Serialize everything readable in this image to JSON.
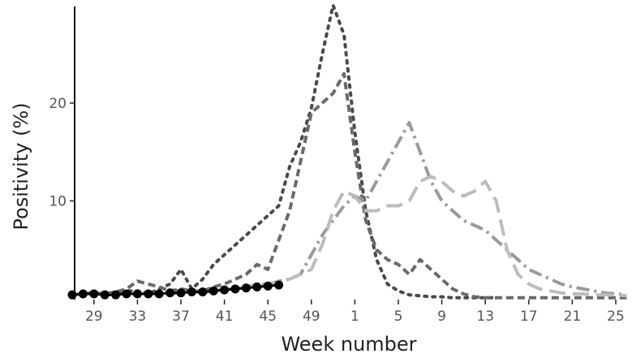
{
  "chart_data": {
    "type": "line",
    "xlabel": "Week number",
    "ylabel": "Positivity (%)",
    "x_ticks": [
      "29",
      "33",
      "37",
      "41",
      "45",
      "49",
      "1",
      "5",
      "9",
      "13",
      "17",
      "21",
      "25"
    ],
    "y_ticks": [
      "10",
      "20"
    ],
    "ylim": [
      0,
      30
    ],
    "x_range": [
      "27",
      "26"
    ],
    "grid": false,
    "legend": "none",
    "series": [
      {
        "style": "dotted",
        "color": "#4a4a4a",
        "x": [
          "27",
          "28",
          "29",
          "30",
          "31",
          "32",
          "33",
          "34",
          "35",
          "36",
          "37",
          "38",
          "39",
          "40",
          "41",
          "42",
          "43",
          "44",
          "45",
          "46",
          "47",
          "48",
          "49",
          "50",
          "51",
          "52",
          "1",
          "2",
          "3",
          "4",
          "5",
          "6",
          "7",
          "8",
          "9",
          "10",
          "11",
          "12",
          "13",
          "14"
        ],
        "values": [
          0.5,
          0.5,
          0.6,
          0.5,
          0.6,
          0.8,
          0.8,
          0.5,
          1.0,
          1.5,
          3.0,
          1.0,
          2.0,
          3.5,
          4.5,
          5.5,
          6.5,
          7.5,
          8.5,
          9.5,
          13.5,
          16.0,
          19.5,
          25.0,
          30.0,
          27.0,
          17.0,
          9.0,
          4.0,
          1.5,
          0.8,
          0.4,
          0.3,
          0.2,
          0.2,
          0.1,
          0.1,
          0.1,
          0.1,
          0.1
        ]
      },
      {
        "style": "dashed",
        "color": "#6a6a6a",
        "x": [
          "27",
          "28",
          "29",
          "30",
          "31",
          "32",
          "33",
          "34",
          "35",
          "36",
          "37",
          "38",
          "39",
          "40",
          "41",
          "42",
          "43",
          "44",
          "45",
          "46",
          "47",
          "48",
          "49",
          "50",
          "51",
          "52",
          "1",
          "2",
          "3",
          "4",
          "5",
          "6",
          "7",
          "8",
          "9",
          "10",
          "11",
          "12",
          "13",
          "14",
          "15",
          "16",
          "17",
          "18",
          "19",
          "20",
          "21",
          "22",
          "23",
          "24",
          "25",
          "26"
        ],
        "values": [
          0.4,
          0.5,
          0.6,
          0.5,
          0.7,
          1.0,
          1.8,
          1.5,
          1.2,
          0.8,
          1.0,
          0.8,
          0.8,
          1.2,
          1.5,
          2.0,
          2.5,
          3.5,
          3.0,
          6.0,
          9.0,
          14.0,
          19.0,
          20.0,
          21.0,
          23.0,
          15.0,
          8.0,
          5.0,
          4.0,
          3.5,
          2.5,
          4.0,
          3.0,
          2.0,
          1.0,
          0.5,
          0.2,
          0.1,
          0.1,
          0.1,
          0.1,
          0.1,
          0.1,
          0.1,
          0.1,
          0.1,
          0.1,
          0.1,
          0.1,
          0.1,
          0.1
        ]
      },
      {
        "style": "dash-dot",
        "color": "#9a9a9a",
        "x": [
          "36",
          "37",
          "38",
          "39",
          "40",
          "41",
          "42",
          "43",
          "44",
          "45",
          "46",
          "47",
          "48",
          "49",
          "50",
          "51",
          "52",
          "1",
          "2",
          "3",
          "4",
          "5",
          "6",
          "7",
          "8",
          "9",
          "10",
          "11",
          "12",
          "13",
          "14",
          "15",
          "16",
          "17",
          "18",
          "19",
          "20",
          "21",
          "22",
          "23",
          "24",
          "25",
          "26"
        ],
        "values": [
          0.5,
          0.6,
          0.8,
          0.6,
          0.8,
          1.0,
          1.0,
          1.2,
          1.5,
          1.5,
          1.8,
          2.0,
          2.5,
          4.5,
          6.5,
          8.0,
          9.5,
          10.5,
          10.0,
          12.0,
          14.0,
          16.0,
          18.0,
          15.0,
          12.0,
          10.0,
          9.0,
          8.0,
          7.5,
          7.0,
          6.0,
          5.0,
          4.0,
          3.0,
          2.5,
          2.0,
          1.5,
          1.2,
          1.0,
          0.8,
          0.6,
          0.5,
          0.4
        ]
      },
      {
        "style": "long-dash",
        "color": "#bcbcbc",
        "x": [
          "36",
          "37",
          "38",
          "39",
          "40",
          "41",
          "42",
          "43",
          "44",
          "45",
          "46",
          "47",
          "48",
          "49",
          "50",
          "51",
          "52",
          "1",
          "2",
          "3",
          "4",
          "5",
          "6",
          "7",
          "8",
          "9",
          "10",
          "11",
          "12",
          "13",
          "14",
          "15",
          "16",
          "17",
          "18",
          "19",
          "20",
          "21",
          "22",
          "23",
          "24",
          "25",
          "26"
        ],
        "values": [
          0.5,
          0.6,
          0.8,
          0.6,
          0.8,
          1.0,
          1.0,
          1.2,
          1.5,
          1.5,
          1.8,
          2.0,
          2.5,
          3.0,
          5.5,
          9.0,
          11.0,
          10.5,
          9.0,
          9.0,
          9.5,
          9.5,
          10.0,
          12.0,
          12.5,
          12.0,
          11.0,
          10.5,
          11.0,
          12.0,
          10.0,
          5.0,
          2.5,
          1.5,
          1.0,
          0.8,
          0.6,
          0.5,
          0.5,
          0.4,
          0.4,
          0.4,
          0.3
        ]
      },
      {
        "style": "points",
        "color": "#000000",
        "x": [
          "27",
          "28",
          "29",
          "30",
          "31",
          "32",
          "33",
          "34",
          "35",
          "36",
          "37",
          "38",
          "39",
          "40",
          "41",
          "42",
          "43",
          "44",
          "45",
          "46"
        ],
        "values": [
          0.4,
          0.5,
          0.5,
          0.4,
          0.4,
          0.5,
          0.5,
          0.5,
          0.5,
          0.6,
          0.6,
          0.7,
          0.7,
          0.8,
          0.9,
          1.0,
          1.1,
          1.2,
          1.3,
          1.4
        ]
      }
    ]
  }
}
